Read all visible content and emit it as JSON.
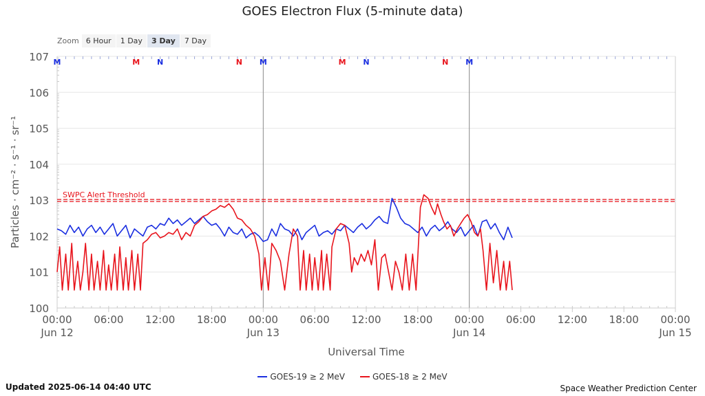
{
  "title": "GOES Electron Flux (5-minute data)",
  "zoom": {
    "label": "Zoom",
    "options": [
      "6 Hour",
      "1 Day",
      "3 Day",
      "7 Day"
    ],
    "active": "3 Day"
  },
  "footer": {
    "updated": "Updated 2025-06-14 04:40 UTC",
    "credit": "Space Weather Prediction Center"
  },
  "colors": {
    "goes19": "#1a2ee0",
    "goes18": "#e8141c",
    "threshold": "#e8141c",
    "grid": "#e6e6e6"
  },
  "chart_data": {
    "type": "line",
    "title": "GOES Electron Flux (5-minute data)",
    "xlabel": "Universal Time",
    "ylabel": "Particles · cm⁻² · s⁻¹ · sr⁻¹",
    "yscale": "log",
    "ylim_exp": [
      0,
      7
    ],
    "ytick_labels": [
      "100",
      "101",
      "102",
      "103",
      "104",
      "105",
      "106",
      "107"
    ],
    "xlim_hours": [
      0,
      72
    ],
    "xtick_hours": [
      0,
      6,
      12,
      18,
      24,
      30,
      36,
      42,
      48,
      54,
      60,
      66,
      72
    ],
    "xtick_labels": [
      "00:00",
      "06:00",
      "12:00",
      "18:00",
      "00:00",
      "06:00",
      "12:00",
      "18:00",
      "00:00",
      "06:00",
      "12:00",
      "18:00",
      "00:00"
    ],
    "date_labels": [
      {
        "hour": 0,
        "label": "Jun 12"
      },
      {
        "hour": 24,
        "label": "Jun 13"
      },
      {
        "hour": 48,
        "label": "Jun 14"
      },
      {
        "hour": 72,
        "label": "Jun 15"
      }
    ],
    "day_lines_hours": [
      24,
      48
    ],
    "threshold": {
      "label": "SWPC Alert Threshold",
      "value_exp": 3
    },
    "markers": [
      {
        "hour": 0,
        "label": "M",
        "color": "#1a2ee0"
      },
      {
        "hour": 9.2,
        "label": "M",
        "color": "#e8141c"
      },
      {
        "hour": 12,
        "label": "N",
        "color": "#1a2ee0"
      },
      {
        "hour": 21.2,
        "label": "N",
        "color": "#e8141c"
      },
      {
        "hour": 24,
        "label": "M",
        "color": "#1a2ee0"
      },
      {
        "hour": 33.2,
        "label": "M",
        "color": "#e8141c"
      },
      {
        "hour": 36,
        "label": "N",
        "color": "#1a2ee0"
      },
      {
        "hour": 45.2,
        "label": "N",
        "color": "#e8141c"
      },
      {
        "hour": 48,
        "label": "M",
        "color": "#1a2ee0"
      }
    ],
    "series": [
      {
        "name": "GOES-19 ≥ 2 MeV",
        "color": "#1a2ee0",
        "points": [
          [
            0,
            2.2
          ],
          [
            0.5,
            2.15
          ],
          [
            1,
            2.05
          ],
          [
            1.5,
            2.3
          ],
          [
            2,
            2.1
          ],
          [
            2.5,
            2.25
          ],
          [
            3,
            2.0
          ],
          [
            3.5,
            2.2
          ],
          [
            4,
            2.3
          ],
          [
            4.5,
            2.1
          ],
          [
            5,
            2.25
          ],
          [
            5.5,
            2.05
          ],
          [
            6,
            2.2
          ],
          [
            6.5,
            2.35
          ],
          [
            7,
            2.0
          ],
          [
            7.5,
            2.15
          ],
          [
            8,
            2.3
          ],
          [
            8.5,
            1.95
          ],
          [
            9,
            2.2
          ],
          [
            9.5,
            2.1
          ],
          [
            10,
            2.0
          ],
          [
            10.5,
            2.25
          ],
          [
            11,
            2.3
          ],
          [
            11.5,
            2.2
          ],
          [
            12,
            2.35
          ],
          [
            12.5,
            2.3
          ],
          [
            13,
            2.5
          ],
          [
            13.5,
            2.35
          ],
          [
            14,
            2.45
          ],
          [
            14.5,
            2.3
          ],
          [
            15,
            2.4
          ],
          [
            15.5,
            2.5
          ],
          [
            16,
            2.35
          ],
          [
            16.5,
            2.45
          ],
          [
            17,
            2.55
          ],
          [
            17.5,
            2.4
          ],
          [
            18,
            2.3
          ],
          [
            18.5,
            2.35
          ],
          [
            19,
            2.2
          ],
          [
            19.5,
            2.0
          ],
          [
            20,
            2.25
          ],
          [
            20.5,
            2.1
          ],
          [
            21,
            2.05
          ],
          [
            21.5,
            2.2
          ],
          [
            22,
            1.95
          ],
          [
            22.5,
            2.05
          ],
          [
            23,
            2.1
          ],
          [
            23.5,
            2.0
          ],
          [
            24,
            1.85
          ],
          [
            24.5,
            1.9
          ],
          [
            25,
            2.2
          ],
          [
            25.5,
            2.0
          ],
          [
            26,
            2.35
          ],
          [
            26.5,
            2.2
          ],
          [
            27,
            2.15
          ],
          [
            27.5,
            2.0
          ],
          [
            28,
            2.2
          ],
          [
            28.5,
            1.9
          ],
          [
            29,
            2.1
          ],
          [
            29.5,
            2.2
          ],
          [
            30,
            2.3
          ],
          [
            30.5,
            2.0
          ],
          [
            31,
            2.1
          ],
          [
            31.5,
            2.15
          ],
          [
            32,
            2.05
          ],
          [
            32.5,
            2.2
          ],
          [
            33,
            2.15
          ],
          [
            33.5,
            2.3
          ],
          [
            34,
            2.2
          ],
          [
            34.5,
            2.1
          ],
          [
            35,
            2.25
          ],
          [
            35.5,
            2.35
          ],
          [
            36,
            2.2
          ],
          [
            36.5,
            2.3
          ],
          [
            37,
            2.45
          ],
          [
            37.5,
            2.55
          ],
          [
            38,
            2.4
          ],
          [
            38.5,
            2.35
          ],
          [
            39,
            3.05
          ],
          [
            39.5,
            2.8
          ],
          [
            40,
            2.5
          ],
          [
            40.5,
            2.35
          ],
          [
            41,
            2.3
          ],
          [
            41.5,
            2.2
          ],
          [
            42,
            2.1
          ],
          [
            42.5,
            2.25
          ],
          [
            43,
            2.0
          ],
          [
            43.5,
            2.2
          ],
          [
            44,
            2.3
          ],
          [
            44.5,
            2.15
          ],
          [
            45,
            2.25
          ],
          [
            45.5,
            2.4
          ],
          [
            46,
            2.2
          ],
          [
            46.5,
            2.1
          ],
          [
            47,
            2.25
          ],
          [
            47.5,
            2.0
          ],
          [
            48,
            2.15
          ],
          [
            48.5,
            2.3
          ],
          [
            49,
            2.0
          ],
          [
            49.5,
            2.4
          ],
          [
            50,
            2.45
          ],
          [
            50.5,
            2.2
          ],
          [
            51,
            2.35
          ],
          [
            51.5,
            2.1
          ],
          [
            52,
            1.9
          ],
          [
            52.5,
            2.25
          ],
          [
            53,
            1.95
          ]
        ]
      },
      {
        "name": "GOES-18 ≥ 2 MeV",
        "color": "#e8141c",
        "points": [
          [
            0,
            1.0
          ],
          [
            0.3,
            1.7
          ],
          [
            0.6,
            0.5
          ],
          [
            1,
            1.5
          ],
          [
            1.3,
            0.5
          ],
          [
            1.7,
            1.8
          ],
          [
            2,
            0.5
          ],
          [
            2.4,
            1.3
          ],
          [
            2.7,
            0.5
          ],
          [
            3,
            1.0
          ],
          [
            3.3,
            1.8
          ],
          [
            3.7,
            0.5
          ],
          [
            4,
            1.5
          ],
          [
            4.3,
            0.5
          ],
          [
            4.7,
            1.3
          ],
          [
            5,
            0.5
          ],
          [
            5.4,
            1.6
          ],
          [
            5.7,
            0.5
          ],
          [
            6,
            1.2
          ],
          [
            6.3,
            0.5
          ],
          [
            6.7,
            1.5
          ],
          [
            7,
            0.5
          ],
          [
            7.3,
            1.7
          ],
          [
            7.7,
            0.5
          ],
          [
            8,
            1.4
          ],
          [
            8.3,
            0.5
          ],
          [
            8.7,
            1.6
          ],
          [
            9,
            0.5
          ],
          [
            9.4,
            1.5
          ],
          [
            9.7,
            0.5
          ],
          [
            10,
            1.8
          ],
          [
            10.5,
            1.9
          ],
          [
            11,
            2.05
          ],
          [
            11.5,
            2.1
          ],
          [
            12,
            1.95
          ],
          [
            12.5,
            2.0
          ],
          [
            13,
            2.1
          ],
          [
            13.5,
            2.05
          ],
          [
            14,
            2.2
          ],
          [
            14.5,
            1.9
          ],
          [
            15,
            2.1
          ],
          [
            15.5,
            2.0
          ],
          [
            16,
            2.3
          ],
          [
            16.5,
            2.4
          ],
          [
            17,
            2.55
          ],
          [
            17.5,
            2.6
          ],
          [
            18,
            2.7
          ],
          [
            18.5,
            2.75
          ],
          [
            19,
            2.85
          ],
          [
            19.5,
            2.8
          ],
          [
            20,
            2.9
          ],
          [
            20.5,
            2.75
          ],
          [
            21,
            2.5
          ],
          [
            21.5,
            2.45
          ],
          [
            22,
            2.3
          ],
          [
            22.5,
            2.2
          ],
          [
            23,
            2.0
          ],
          [
            23.5,
            1.5
          ],
          [
            23.8,
            0.5
          ],
          [
            24.2,
            1.4
          ],
          [
            24.6,
            0.5
          ],
          [
            25,
            1.8
          ],
          [
            25.5,
            1.6
          ],
          [
            26,
            1.3
          ],
          [
            26.5,
            0.5
          ],
          [
            27,
            1.5
          ],
          [
            27.5,
            2.2
          ],
          [
            28,
            2.0
          ],
          [
            28.3,
            0.5
          ],
          [
            28.7,
            1.6
          ],
          [
            29,
            0.5
          ],
          [
            29.4,
            1.5
          ],
          [
            29.7,
            0.5
          ],
          [
            30,
            1.4
          ],
          [
            30.4,
            0.5
          ],
          [
            30.8,
            1.6
          ],
          [
            31,
            0.5
          ],
          [
            31.4,
            1.5
          ],
          [
            31.8,
            0.5
          ],
          [
            32,
            1.7
          ],
          [
            32.5,
            2.2
          ],
          [
            33,
            2.35
          ],
          [
            33.5,
            2.3
          ],
          [
            34,
            1.8
          ],
          [
            34.3,
            1.0
          ],
          [
            34.6,
            1.4
          ],
          [
            35,
            1.2
          ],
          [
            35.4,
            1.5
          ],
          [
            35.8,
            1.3
          ],
          [
            36.2,
            1.6
          ],
          [
            36.6,
            1.2
          ],
          [
            37,
            1.9
          ],
          [
            37.4,
            0.5
          ],
          [
            37.8,
            1.4
          ],
          [
            38.2,
            1.5
          ],
          [
            38.6,
            1.0
          ],
          [
            39,
            0.5
          ],
          [
            39.4,
            1.3
          ],
          [
            39.8,
            1.0
          ],
          [
            40.2,
            0.5
          ],
          [
            40.6,
            1.5
          ],
          [
            41,
            0.5
          ],
          [
            41.4,
            1.5
          ],
          [
            41.8,
            0.5
          ],
          [
            42.3,
            2.8
          ],
          [
            42.7,
            3.15
          ],
          [
            43.2,
            3.05
          ],
          [
            43.6,
            2.8
          ],
          [
            44,
            2.6
          ],
          [
            44.3,
            2.9
          ],
          [
            44.7,
            2.6
          ],
          [
            45,
            2.4
          ],
          [
            45.4,
            2.2
          ],
          [
            45.8,
            2.3
          ],
          [
            46.2,
            2.0
          ],
          [
            46.6,
            2.2
          ],
          [
            47,
            2.35
          ],
          [
            47.4,
            2.5
          ],
          [
            47.8,
            2.6
          ],
          [
            48.2,
            2.4
          ],
          [
            48.6,
            2.1
          ],
          [
            49,
            2.0
          ],
          [
            49.3,
            2.2
          ],
          [
            49.6,
            1.6
          ],
          [
            50,
            0.5
          ],
          [
            50.4,
            1.8
          ],
          [
            50.8,
            0.7
          ],
          [
            51.2,
            1.6
          ],
          [
            51.6,
            0.5
          ],
          [
            52,
            1.3
          ],
          [
            52.3,
            0.5
          ],
          [
            52.7,
            1.3
          ],
          [
            53,
            0.5
          ]
        ]
      }
    ]
  }
}
